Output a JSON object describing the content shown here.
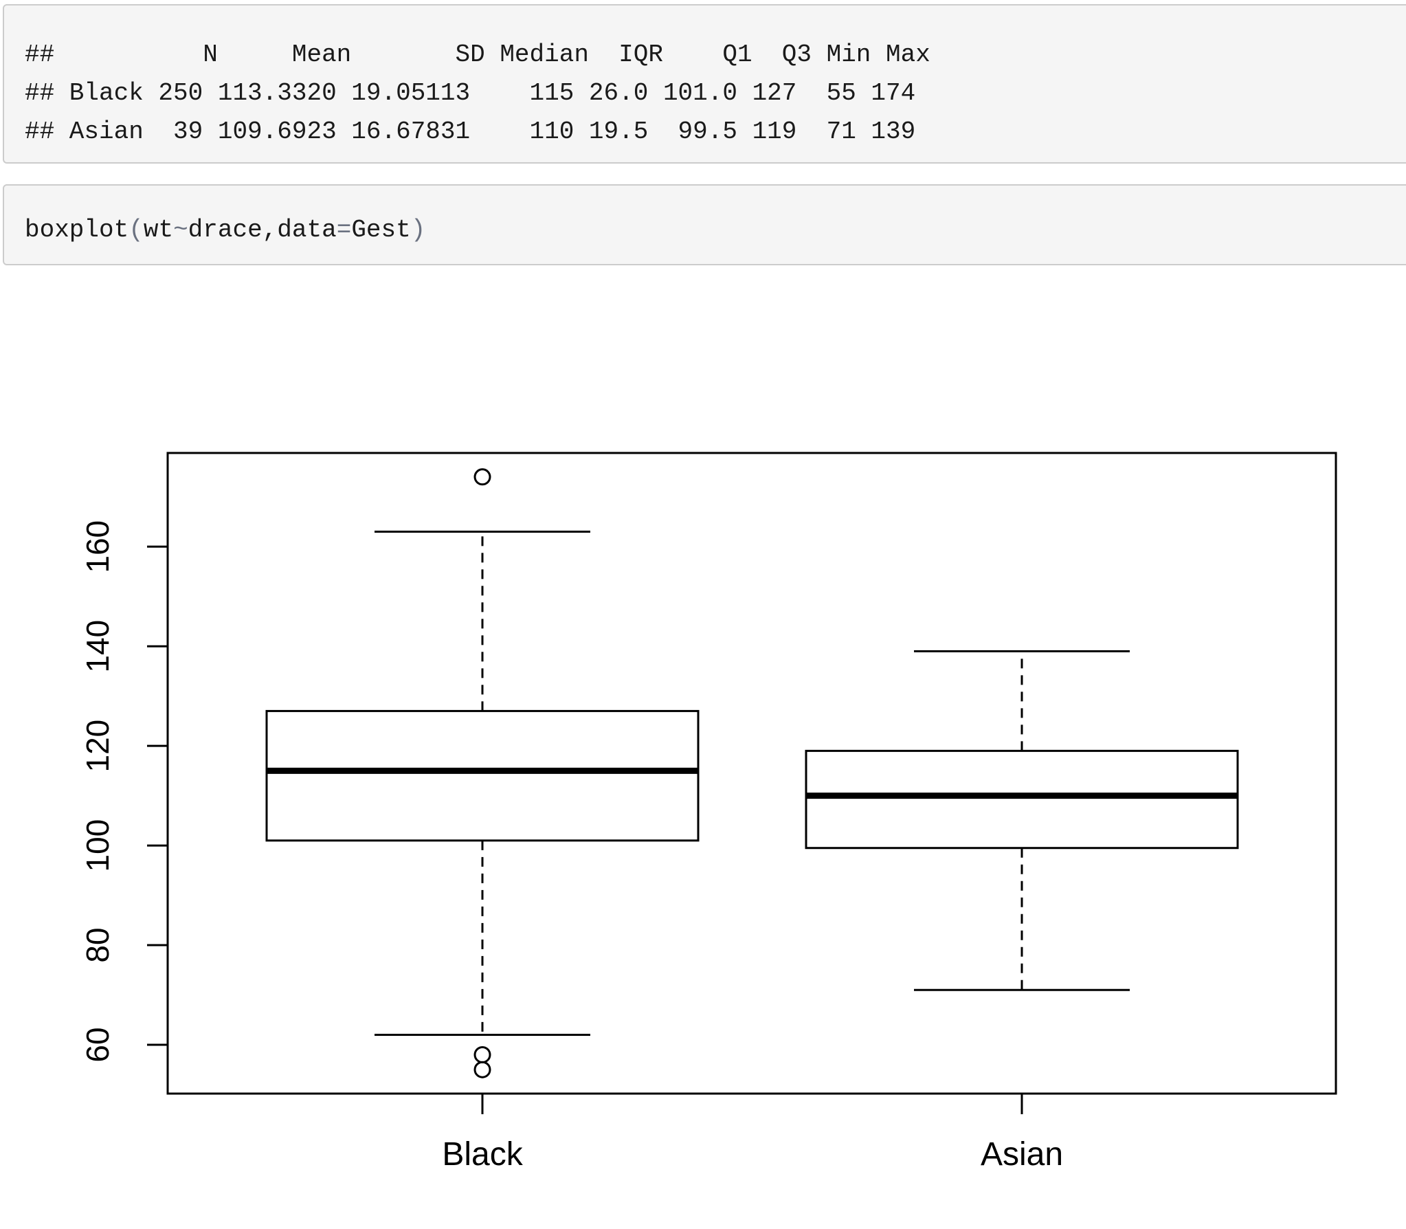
{
  "output": {
    "lines": [
      "##          N     Mean       SD Median  IQR    Q1  Q3 Min Max",
      "## Black 250 113.3320 19.05113    115 26.0 101.0 127  55 174",
      "## Asian  39 109.6923 16.67831    110 19.5  99.5 119  71 139"
    ]
  },
  "code": {
    "fn": "boxplot",
    "open": "(",
    "arg1": "wt",
    "tilde": "~",
    "arg2": "drace,data",
    "eq": "=",
    "arg3": "Gest",
    "close": ")"
  },
  "chart_data": {
    "type": "boxplot",
    "categories": [
      "Black",
      "Asian"
    ],
    "boxes": [
      {
        "name": "Black",
        "q1": 101,
        "median": 115,
        "q3": 127,
        "whisker_low": 62,
        "whisker_high": 163,
        "outliers": [
          174,
          58,
          55
        ]
      },
      {
        "name": "Asian",
        "q1": 99.5,
        "median": 110,
        "q3": 119,
        "whisker_low": 71,
        "whisker_high": 139,
        "outliers": []
      }
    ],
    "yticks": [
      60,
      80,
      100,
      120,
      140,
      160
    ],
    "ylim": [
      50.2,
      178.8
    ],
    "xlabel": "",
    "ylabel": "",
    "title": "",
    "grid": false
  }
}
